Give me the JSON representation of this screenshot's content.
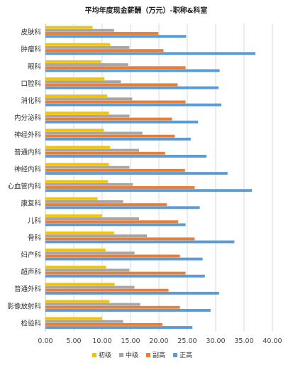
{
  "chart_data": {
    "type": "bar",
    "orientation": "horizontal",
    "title": "平均年度现金薪酬（万元）-职称&科室",
    "categories": [
      "皮肤科",
      "肿瘤科",
      "眼科",
      "口腔科",
      "消化科",
      "内分泌科",
      "神经外科",
      "普通内科",
      "神经内科",
      "心血管内科",
      "康复科",
      "儿科",
      "骨科",
      "妇产科",
      "超声科",
      "普通外科",
      "影像放射科",
      "检验科"
    ],
    "series": [
      {
        "name": "初级",
        "color": "#f2c400",
        "values": [
          8.3,
          11.4,
          9.8,
          10.4,
          10.9,
          11.2,
          10.3,
          11.4,
          11.2,
          11.0,
          9.2,
          10.0,
          12.1,
          10.6,
          10.7,
          12.2,
          11.3,
          10.0
        ]
      },
      {
        "name": "中级",
        "color": "#a6a6a6",
        "values": [
          12.1,
          14.8,
          14.6,
          13.3,
          15.3,
          14.8,
          17.1,
          16.5,
          14.8,
          15.4,
          13.7,
          16.5,
          17.9,
          15.7,
          14.8,
          15.7,
          16.7,
          13.7
        ]
      },
      {
        "name": "副高",
        "color": "#ed7d31",
        "values": [
          19.9,
          20.8,
          24.7,
          23.3,
          24.7,
          22.3,
          22.8,
          21.1,
          24.6,
          26.3,
          21.4,
          23.4,
          26.3,
          23.7,
          24.7,
          21.7,
          23.7,
          20.6
        ]
      },
      {
        "name": "正高",
        "color": "#5b9bd5",
        "values": [
          24.8,
          37.0,
          30.7,
          30.5,
          31.0,
          26.9,
          25.6,
          28.4,
          32.1,
          36.4,
          27.2,
          24.7,
          33.3,
          27.7,
          28.1,
          30.6,
          29.1,
          25.9
        ]
      }
    ],
    "xlim": [
      0,
      40
    ],
    "x_ticks": [
      "0.00",
      "5.00",
      "10.00",
      "15.00",
      "20.00",
      "25.00",
      "30.00",
      "35.00",
      "40.00"
    ],
    "grid": true,
    "legend_position": "bottom"
  }
}
